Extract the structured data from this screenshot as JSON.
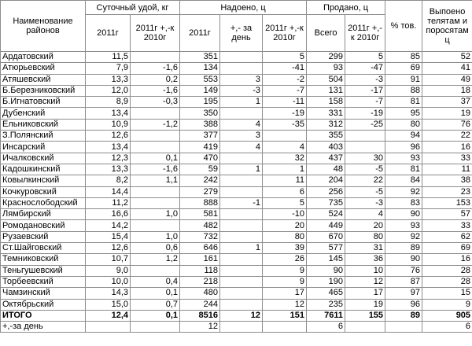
{
  "table": {
    "group_headers": {
      "district": "Наименование районов",
      "daily_yield": "Суточный удой, кг",
      "milked": "Надоено, ц",
      "sold": "Продано, ц",
      "marketable": "% тов.",
      "fed": "Выпоено телятам и поросятам ц"
    },
    "sub_headers": [
      "2011г",
      "2011г +,-к 2010г",
      "2011г",
      "+,- за день",
      "2011г +,-к 2010г",
      "Всего",
      "2011г +,-к 2010г"
    ],
    "rows": [
      [
        "Ардатовский",
        "11,5",
        null,
        "351",
        null,
        "5",
        "299",
        "5",
        "85",
        "52"
      ],
      [
        "Атюрьевский",
        "7,9",
        "-1,6",
        "134",
        null,
        "-41",
        "93",
        "-47",
        "69",
        "41"
      ],
      [
        "Атяшевский",
        "13,3",
        "0,2",
        "553",
        "3",
        "-2",
        "504",
        "-3",
        "91",
        "49"
      ],
      [
        "Б.Березниковский",
        "12,0",
        "-1,6",
        "149",
        "-3",
        "-7",
        "131",
        "-17",
        "88",
        "18"
      ],
      [
        "Б.Игнатовский",
        "8,9",
        "-0,3",
        "195",
        "1",
        "-11",
        "158",
        "-7",
        "81",
        "37"
      ],
      [
        "Дубенский",
        "13,4",
        null,
        "350",
        null,
        "-19",
        "331",
        "-19",
        "95",
        "19"
      ],
      [
        "Ельниковский",
        "10,9",
        "-1,2",
        "388",
        "4",
        "-35",
        "312",
        "-25",
        "80",
        "76"
      ],
      [
        "З.Полянский",
        "12,6",
        null,
        "377",
        "3",
        null,
        "355",
        null,
        "94",
        "22"
      ],
      [
        "Инсарский",
        "13,4",
        null,
        "419",
        "4",
        "4",
        "403",
        null,
        "96",
        "16"
      ],
      [
        "Ичалковский",
        "12,3",
        "0,1",
        "470",
        null,
        "32",
        "437",
        "30",
        "93",
        "33"
      ],
      [
        "Кадошкинский",
        "13,3",
        "-1,6",
        "59",
        "1",
        "1",
        "48",
        "-5",
        "81",
        "11"
      ],
      [
        "Ковылкинский",
        "8,2",
        "1,1",
        "242",
        null,
        "11",
        "204",
        "22",
        "84",
        "38"
      ],
      [
        "Кочкуровский",
        "14,4",
        null,
        "279",
        null,
        "6",
        "256",
        "-5",
        "92",
        "23"
      ],
      [
        "Краснослободский",
        "11,2",
        null,
        "888",
        "-1",
        "5",
        "735",
        "-3",
        "83",
        "153"
      ],
      [
        "Лямбирский",
        "16,6",
        "1,0",
        "581",
        null,
        "-10",
        "524",
        "4",
        "90",
        "57"
      ],
      [
        "Ромодановский",
        "14,2",
        null,
        "482",
        null,
        "20",
        "449",
        "20",
        "93",
        "33"
      ],
      [
        "Рузаевский",
        "15,4",
        "1,0",
        "732",
        null,
        "80",
        "670",
        "80",
        "92",
        "62"
      ],
      [
        "Ст.Шайговский",
        "12,6",
        "0,6",
        "646",
        "1",
        "39",
        "577",
        "31",
        "89",
        "69"
      ],
      [
        "Темниковский",
        "10,7",
        "1,2",
        "161",
        null,
        "26",
        "145",
        "36",
        "90",
        "16"
      ],
      [
        "Теньгушевский",
        "9,0",
        null,
        "118",
        null,
        "9",
        "90",
        "10",
        "76",
        "28"
      ],
      [
        "Торбеевский",
        "10,0",
        "0,4",
        "218",
        null,
        "9",
        "190",
        "12",
        "87",
        "28"
      ],
      [
        "Чамзинский",
        "14,3",
        "0,1",
        "480",
        null,
        "17",
        "465",
        "17",
        "97",
        "15"
      ],
      [
        "Октябрьский",
        "15,0",
        "0,7",
        "244",
        null,
        "12",
        "235",
        "19",
        "96",
        "9"
      ]
    ],
    "total": [
      "ИТОГО",
      "12,4",
      "0,1",
      "8516",
      "12",
      "151",
      "7611",
      "155",
      "89",
      "905"
    ],
    "per_day": [
      "+,-за день",
      null,
      null,
      "12",
      null,
      null,
      "6",
      null,
      null,
      "6"
    ]
  }
}
